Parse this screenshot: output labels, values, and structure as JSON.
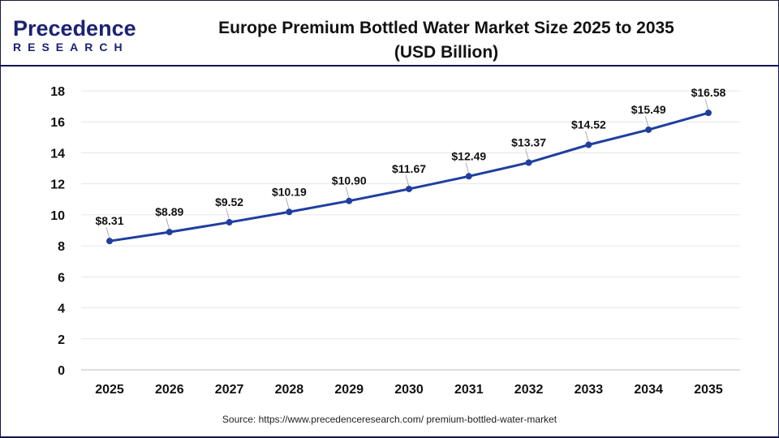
{
  "logo": {
    "brand_top": "Precedence",
    "brand_bottom": "RESEARCH"
  },
  "source": "Source: https://www.precedenceresearch.com/ premium-bottled-water-market",
  "colors": {
    "line": "#1f3f9f",
    "marker": "#1f3f9f",
    "grid": "#e6e6e6",
    "brand_dark": "#1c2273",
    "brand_blue": "#2f4bd6"
  },
  "chart_data": {
    "type": "line",
    "title": "Europe Premium Bottled Water Market Size 2025 to 2035",
    "subtitle": "(USD Billion)",
    "categories": [
      "2025",
      "2026",
      "2027",
      "2028",
      "2029",
      "2030",
      "2031",
      "2032",
      "2033",
      "2034",
      "2035"
    ],
    "values": [
      8.31,
      8.89,
      9.52,
      10.19,
      10.9,
      11.67,
      12.49,
      13.37,
      14.52,
      15.49,
      16.58
    ],
    "data_labels": [
      "$8.31",
      "$8.89",
      "$9.52",
      "$10.19",
      "$10.90",
      "$11.67",
      "$12.49",
      "$13.37",
      "$14.52",
      "$15.49",
      "$16.58"
    ],
    "yticks": [
      "0",
      "2",
      "4",
      "6",
      "8",
      "10",
      "12",
      "14",
      "16",
      "18"
    ],
    "ylim": [
      0,
      18
    ],
    "xlabel": "",
    "ylabel": "",
    "grid": true,
    "legend": "none"
  }
}
